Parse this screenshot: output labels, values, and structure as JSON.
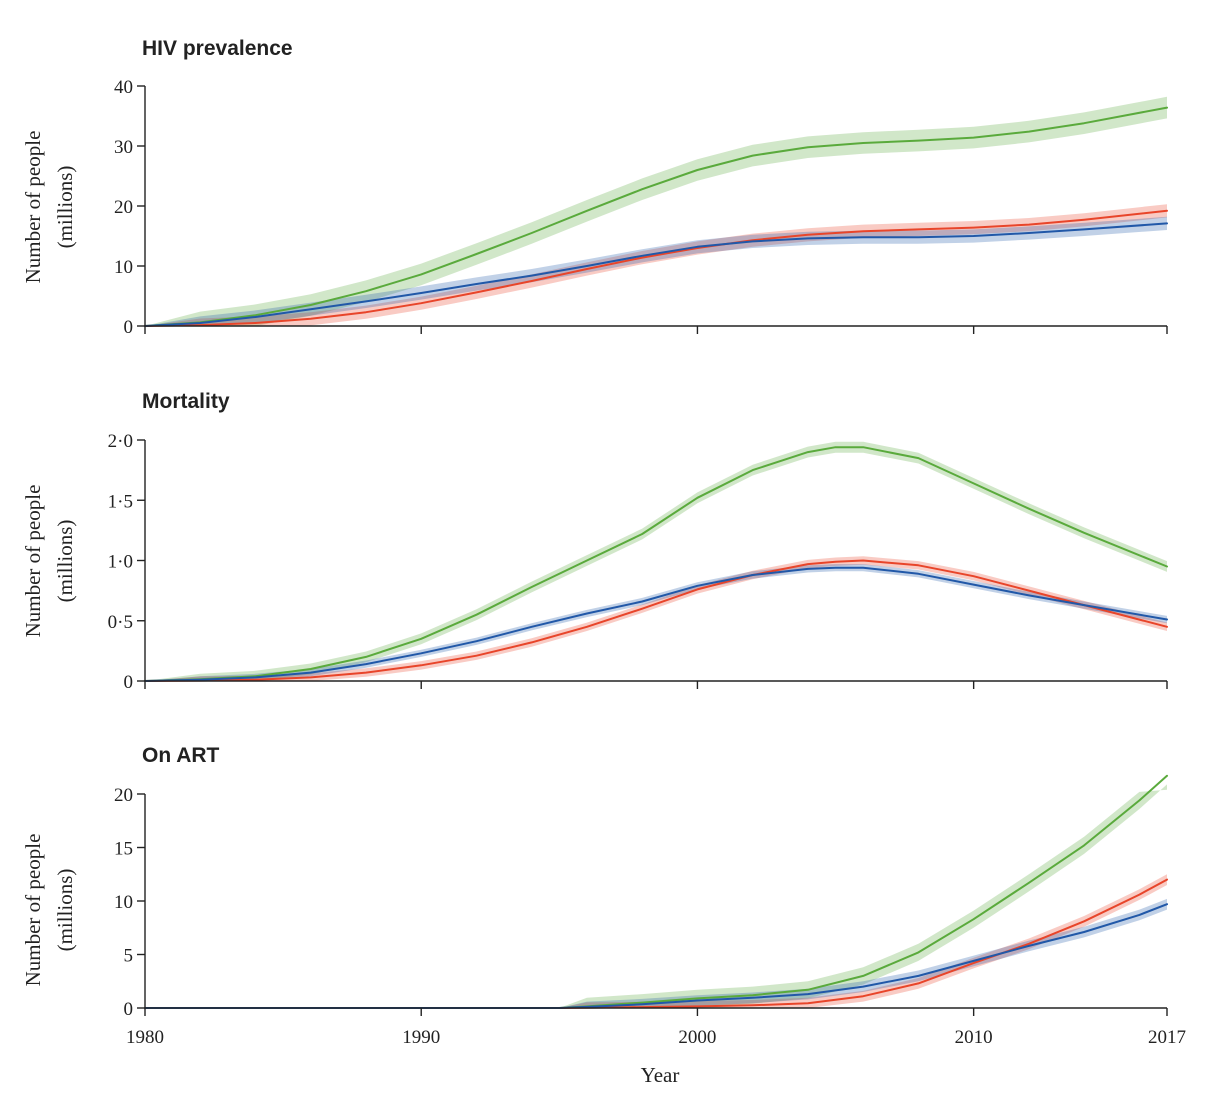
{
  "figure": {
    "xlabel": "Year",
    "ylabel_line1": "Number of people",
    "ylabel_line2": "(millions)"
  },
  "colors": {
    "green": "#5aaa3c",
    "red": "#e8452a",
    "blue": "#2158a8",
    "axis": "#222222"
  },
  "chart_data": [
    {
      "type": "line",
      "title": "HIV prevalence",
      "xlim": [
        1980,
        2017
      ],
      "ylim": [
        0,
        40
      ],
      "xticks": [
        1980,
        1990,
        2000,
        2010,
        2017
      ],
      "yticks": [
        0,
        10,
        20,
        30,
        40
      ],
      "ytick_labels": [
        "0",
        "10",
        "20",
        "30",
        "40"
      ],
      "x": [
        1980,
        1982,
        1984,
        1986,
        1988,
        1990,
        1992,
        1994,
        1996,
        1998,
        2000,
        2002,
        2004,
        2006,
        2008,
        2010,
        2012,
        2014,
        2017
      ],
      "series": [
        {
          "color": "green",
          "band": 1.8,
          "values": [
            0,
            0.6,
            1.8,
            3.5,
            5.8,
            8.6,
            12.0,
            15.5,
            19.2,
            22.8,
            26.0,
            28.4,
            29.8,
            30.5,
            30.9,
            31.4,
            32.4,
            33.8,
            36.4
          ]
        },
        {
          "color": "red",
          "band": 1.1,
          "values": [
            0,
            0.15,
            0.5,
            1.2,
            2.3,
            3.8,
            5.6,
            7.5,
            9.5,
            11.4,
            13.0,
            14.3,
            15.2,
            15.8,
            16.1,
            16.4,
            16.9,
            17.7,
            19.2
          ]
        },
        {
          "color": "blue",
          "band": 1.1,
          "values": [
            0,
            0.5,
            1.5,
            2.8,
            4.1,
            5.5,
            7.0,
            8.4,
            10.0,
            11.7,
            13.2,
            14.1,
            14.6,
            14.8,
            14.8,
            15.0,
            15.5,
            16.1,
            17.1
          ]
        }
      ]
    },
    {
      "type": "line",
      "title": "Mortality",
      "xlim": [
        1980,
        2017
      ],
      "ylim": [
        0,
        2
      ],
      "xticks": [
        1980,
        1990,
        2000,
        2010,
        2017
      ],
      "yticks": [
        0,
        0.5,
        1,
        1.5,
        2
      ],
      "ytick_labels": [
        "0",
        "0·5",
        "1·0",
        "1·5",
        "2·0"
      ],
      "x": [
        1980,
        1982,
        1984,
        1986,
        1988,
        1990,
        1992,
        1994,
        1996,
        1998,
        2000,
        2002,
        2004,
        2005,
        2006,
        2008,
        2010,
        2012,
        2014,
        2017
      ],
      "series": [
        {
          "color": "green",
          "band": 0.045,
          "values": [
            0,
            0.015,
            0.04,
            0.1,
            0.2,
            0.35,
            0.55,
            0.78,
            1.0,
            1.22,
            1.52,
            1.75,
            1.9,
            1.94,
            1.94,
            1.85,
            1.64,
            1.43,
            1.23,
            0.95
          ]
        },
        {
          "color": "red",
          "band": 0.035,
          "values": [
            0,
            0.003,
            0.01,
            0.03,
            0.07,
            0.13,
            0.21,
            0.32,
            0.45,
            0.6,
            0.76,
            0.88,
            0.97,
            0.99,
            1.0,
            0.96,
            0.87,
            0.75,
            0.63,
            0.45
          ]
        },
        {
          "color": "blue",
          "band": 0.03,
          "values": [
            0,
            0.01,
            0.03,
            0.07,
            0.14,
            0.23,
            0.33,
            0.45,
            0.56,
            0.66,
            0.79,
            0.88,
            0.93,
            0.94,
            0.94,
            0.89,
            0.8,
            0.71,
            0.63,
            0.51
          ]
        }
      ]
    },
    {
      "type": "line",
      "title": "On ART",
      "xlim": [
        1980,
        2017
      ],
      "ylim": [
        0,
        20
      ],
      "xticks": [
        1980,
        1990,
        2000,
        2010,
        2017
      ],
      "yticks": [
        0,
        5,
        10,
        15,
        20
      ],
      "ytick_labels": [
        "0",
        "5",
        "10",
        "15",
        "20"
      ],
      "xtick_labels": [
        "1980",
        "1990",
        "2000",
        "2010",
        "2017"
      ],
      "x": [
        1980,
        1985,
        1990,
        1995,
        1996,
        1998,
        2000,
        2002,
        2004,
        2006,
        2008,
        2010,
        2012,
        2014,
        2016,
        2017
      ],
      "series": [
        {
          "color": "green",
          "band": 0.8,
          "values": [
            0,
            0,
            0,
            0,
            0.15,
            0.5,
            0.9,
            1.2,
            1.7,
            3.0,
            5.2,
            8.3,
            11.7,
            15.2,
            19.4,
            21.7
          ]
        },
        {
          "color": "red",
          "band": 0.5,
          "values": [
            0,
            0,
            0,
            0,
            0.02,
            0.08,
            0.15,
            0.25,
            0.45,
            1.1,
            2.3,
            4.2,
            6.0,
            8.1,
            10.6,
            12.0
          ]
        },
        {
          "color": "blue",
          "band": 0.5,
          "values": [
            0,
            0,
            0,
            0,
            0.1,
            0.35,
            0.7,
            0.95,
            1.3,
            2.0,
            3.0,
            4.4,
            5.8,
            7.1,
            8.7,
            9.7
          ]
        }
      ]
    }
  ]
}
